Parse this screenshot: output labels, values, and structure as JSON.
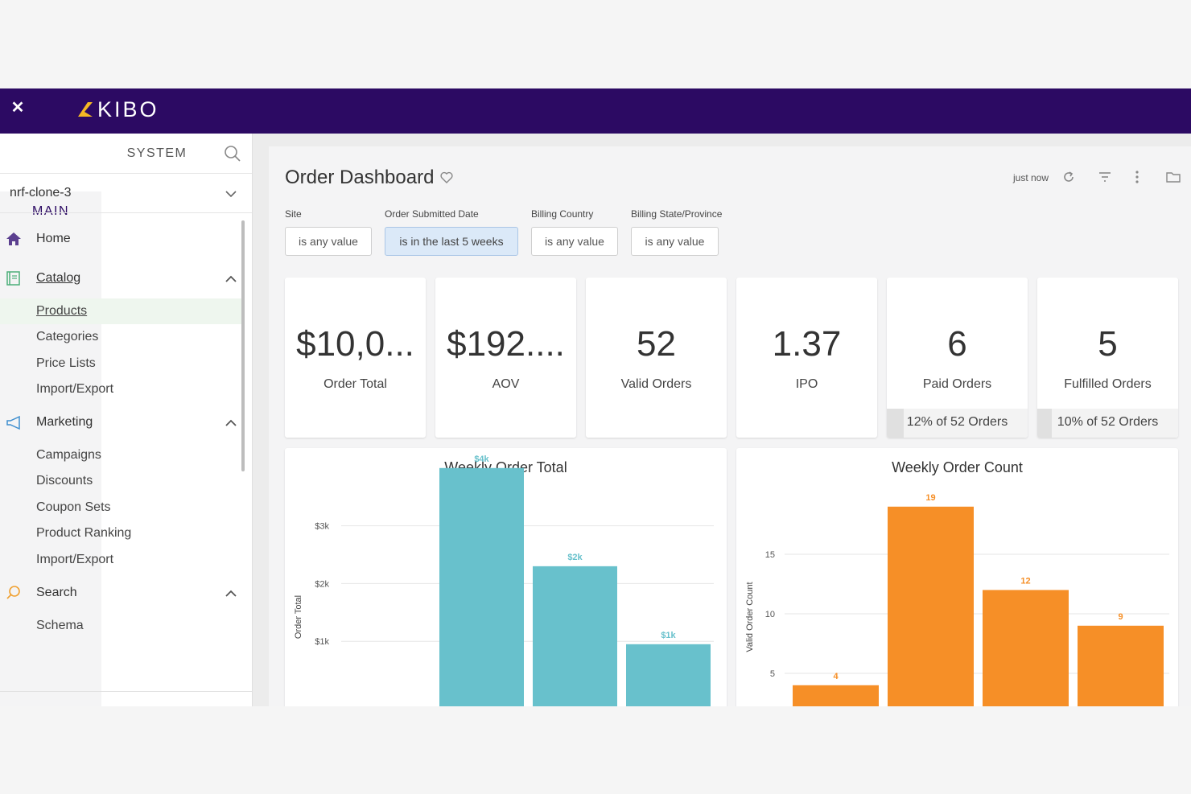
{
  "header": {
    "brand": "KIBO",
    "close_icon": "close-icon"
  },
  "sidebar": {
    "tabs": [
      "MAIN",
      "SYSTEM"
    ],
    "site": "nrf-clone-3",
    "nav": [
      {
        "label": "Home",
        "icon": "home-icon"
      },
      {
        "label": "Catalog",
        "icon": "catalog-icon",
        "children": [
          "Products",
          "Categories",
          "Price Lists",
          "Import/Export"
        ]
      },
      {
        "label": "Marketing",
        "icon": "megaphone-icon",
        "children": [
          "Campaigns",
          "Discounts",
          "Coupon Sets",
          "Product Ranking",
          "Import/Export"
        ]
      },
      {
        "label": "Search",
        "icon": "search-icon",
        "children": [
          "Schema"
        ]
      }
    ]
  },
  "dashboard": {
    "title": "Order Dashboard",
    "refreshed": "just now",
    "filters": [
      {
        "label": "Site",
        "value": "is any value"
      },
      {
        "label": "Order Submitted Date",
        "value": "is in the last 5 weeks"
      },
      {
        "label": "Billing Country",
        "value": "is any value"
      },
      {
        "label": "Billing State/Province",
        "value": "is any value"
      }
    ],
    "tiles": [
      {
        "value": "$10,0...",
        "caption": "Order Total"
      },
      {
        "value": "$192....",
        "caption": "AOV"
      },
      {
        "value": "52",
        "caption": "Valid Orders"
      },
      {
        "value": "1.37",
        "caption": "IPO"
      },
      {
        "value": "6",
        "caption": "Paid Orders",
        "footer": "12% of 52 Orders"
      },
      {
        "value": "5",
        "caption": "Fulfilled Orders",
        "footer": "10% of 52 Orders"
      }
    ],
    "colors": {
      "brand": "#2c0a63",
      "teal": "#68c1cc",
      "orange": "#f68f27"
    }
  },
  "chart_data": [
    {
      "type": "bar",
      "title": "Weekly Order Total",
      "ylabel": "Order Total",
      "yticks": [
        "$1k",
        "$2k",
        "$3k"
      ],
      "ytick_values": [
        1000,
        2000,
        3000
      ],
      "series": [
        {
          "values": [
            4000,
            2300,
            950
          ],
          "labels": [
            "$4k",
            "$2k",
            "$1k"
          ]
        }
      ],
      "color": "#68c1cc"
    },
    {
      "type": "bar",
      "title": "Weekly Order Count",
      "ylabel": "Valid Order Count",
      "yticks": [
        "5",
        "10",
        "15"
      ],
      "ytick_values": [
        5,
        10,
        15
      ],
      "series": [
        {
          "values": [
            4,
            19,
            12,
            9
          ],
          "labels": [
            "4",
            "19",
            "12",
            "9"
          ]
        }
      ],
      "color": "#f68f27"
    }
  ]
}
